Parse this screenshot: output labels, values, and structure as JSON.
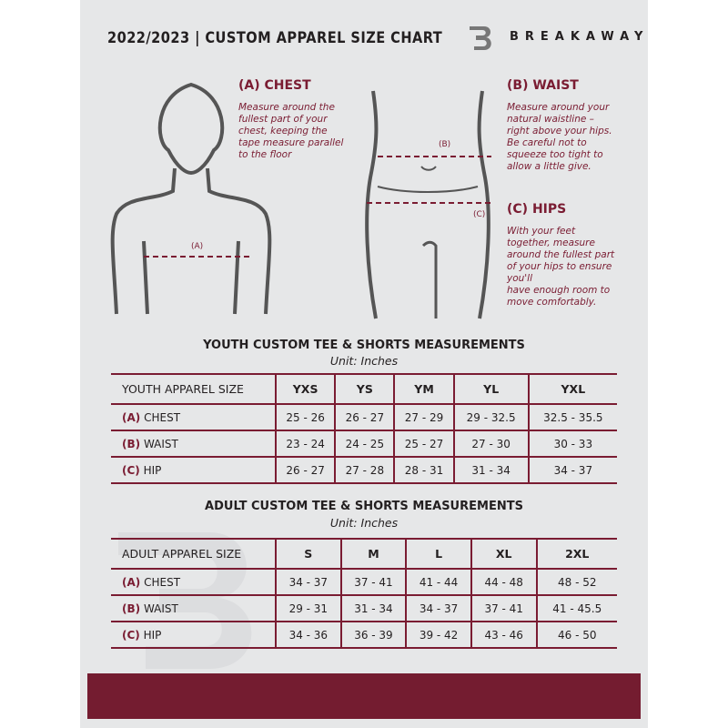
{
  "header": {
    "title": "2022/2023 | CUSTOM APPAREL SIZE CHART",
    "brand": "BREAKAWAY",
    "logo_letter": "B"
  },
  "measures": {
    "chest": {
      "title": "(A) CHEST",
      "marker": "(A)",
      "desc": [
        "Measure around the",
        "fullest part of your",
        "chest, keeping the",
        "tape measure parallel",
        "to the floor"
      ]
    },
    "waist": {
      "title": "(B) WAIST",
      "marker": "(B)",
      "desc": [
        "Measure around your",
        "natural waistline –",
        "right above your hips.",
        "Be careful not to",
        "squeeze too tight to",
        "allow a little give."
      ]
    },
    "hips": {
      "title": "(C) HIPS",
      "marker": "(C)",
      "desc": [
        "With your feet",
        "together, measure",
        "around the fullest part",
        "of your hips to ensure",
        "you'll",
        "have enough room to",
        "move comfortably."
      ]
    }
  },
  "youth": {
    "title": "YOUTH CUSTOM TEE & SHORTS MEASUREMENTS",
    "unit": "Unit: Inches",
    "header": [
      "YOUTH APPAREL SIZE",
      "YXS",
      "YS",
      "YM",
      "YL",
      "YXL"
    ],
    "rows": [
      {
        "letter": "(A)",
        "label": "CHEST",
        "values": [
          "25 - 26",
          "26 - 27",
          "27 - 29",
          "29 - 32.5",
          "32.5 - 35.5"
        ]
      },
      {
        "letter": "(B)",
        "label": "WAIST",
        "values": [
          "23 - 24",
          "24 - 25",
          "25 - 27",
          "27 - 30",
          "30 - 33"
        ]
      },
      {
        "letter": "(C)",
        "label": "HIP",
        "values": [
          "26 - 27",
          "27 - 28",
          "28 - 31",
          "31 - 34",
          "34 - 37"
        ]
      }
    ]
  },
  "adult": {
    "title": "ADULT CUSTOM TEE & SHORTS MEASUREMENTS",
    "unit": "Unit: Inches",
    "header": [
      "ADULT APPAREL SIZE",
      "S",
      "M",
      "L",
      "XL",
      "2XL"
    ],
    "rows": [
      {
        "letter": "(A)",
        "label": "CHEST",
        "values": [
          "34 - 37",
          "37 - 41",
          "41 - 44",
          "44 - 48",
          "48 - 52"
        ]
      },
      {
        "letter": "(B)",
        "label": "WAIST",
        "values": [
          "29 - 31",
          "31 - 34",
          "34 - 37",
          "37 - 41",
          "41 - 45.5"
        ]
      },
      {
        "letter": "(C)",
        "label": "HIP",
        "values": [
          "34 - 36",
          "36 - 39",
          "39 - 42",
          "43 - 46",
          "46 - 50"
        ]
      }
    ]
  },
  "colors": {
    "accent": "#7a1c32",
    "footer": "#741c30",
    "page": "#e6e7e8"
  }
}
